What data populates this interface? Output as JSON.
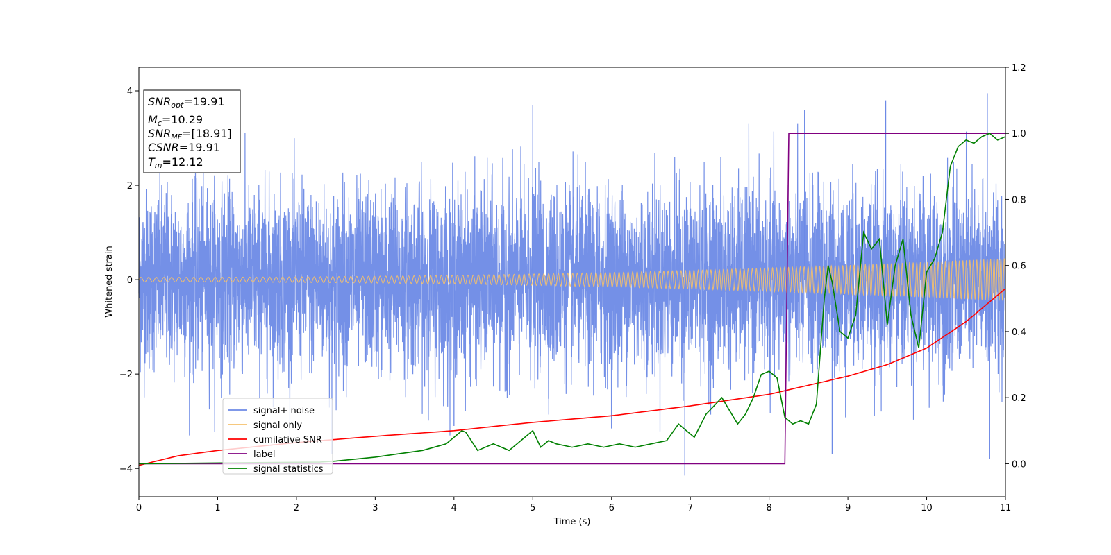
{
  "chart_data": {
    "type": "line",
    "xlabel": "Time (s)",
    "ylabel": "Whitened strain",
    "xlim": [
      0,
      11
    ],
    "ylim": [
      -4.6,
      4.5
    ],
    "y2lim": [
      -0.1,
      1.2
    ],
    "xticks": [
      "0",
      "1",
      "2",
      "3",
      "4",
      "5",
      "6",
      "7",
      "8",
      "9",
      "10",
      "11"
    ],
    "yticks": [
      "-4",
      "-2",
      "0",
      "2",
      "4"
    ],
    "y2ticks": [
      "0.0",
      "0.2",
      "0.4",
      "0.6",
      "0.8",
      "1.0",
      "1.2"
    ],
    "grid": false,
    "legend_position": "lower-left",
    "legend": [
      {
        "label": "signal+ noise",
        "color": "#6d8ae6"
      },
      {
        "label": "signal only",
        "color": "#f4c06c"
      },
      {
        "label": "cumilative SNR",
        "color": "#ff0000"
      },
      {
        "label": "label",
        "color": "#800080"
      },
      {
        "label": "signal statistics",
        "color": "#008000"
      }
    ],
    "info_box": [
      {
        "sym": "SNR",
        "sub": "opt",
        "val": "=19.91"
      },
      {
        "sym": "M",
        "sub": "c",
        "val": "=10.29"
      },
      {
        "sym": "SNR",
        "sub": "MF",
        "val": "=[18.91]"
      },
      {
        "sym": "CSNR",
        "sub": "",
        "val": "=19.91"
      },
      {
        "sym": "T",
        "sub": "m",
        "val": "=12.12"
      }
    ],
    "series": [
      {
        "name": "signal+ noise",
        "axis": "left",
        "kind": "noise",
        "amplitude_sigma": 1.0,
        "x_range": [
          0,
          11
        ],
        "notable_spikes": [
          [
            2.45,
            -3.7
          ],
          [
            5.0,
            3.7
          ],
          [
            6.93,
            -4.15
          ],
          [
            8.45,
            3.6
          ],
          [
            8.8,
            -3.7
          ],
          [
            9.48,
            3.8
          ],
          [
            10.77,
            3.95
          ],
          [
            10.8,
            -3.8
          ],
          [
            4.0,
            -3.1
          ]
        ]
      },
      {
        "name": "signal only",
        "axis": "left",
        "kind": "chirp",
        "x_range": [
          0,
          11
        ],
        "amplitude_start": 0.05,
        "amplitude_end": 0.45
      },
      {
        "name": "cumilative SNR",
        "axis": "right",
        "x": [
          0,
          0.5,
          1,
          2,
          3,
          4,
          5,
          6,
          7,
          8,
          9,
          9.5,
          10,
          10.5,
          11
        ],
        "y": [
          -0.005,
          0.024,
          0.04,
          0.064,
          0.083,
          0.1,
          0.125,
          0.145,
          0.175,
          0.21,
          0.265,
          0.3,
          0.35,
          0.43,
          0.53
        ]
      },
      {
        "name": "label",
        "axis": "right",
        "x": [
          0,
          8.2,
          8.25,
          11
        ],
        "y": [
          0,
          0,
          1,
          1
        ]
      },
      {
        "name": "signal statistics",
        "axis": "right",
        "x": [
          0,
          2.3,
          2.5,
          3.0,
          3.3,
          3.6,
          3.9,
          4.1,
          4.15,
          4.3,
          4.5,
          4.7,
          4.9,
          5.0,
          5.1,
          5.2,
          5.3,
          5.5,
          5.7,
          5.9,
          6.1,
          6.3,
          6.5,
          6.7,
          6.85,
          6.95,
          7.05,
          7.2,
          7.4,
          7.6,
          7.7,
          7.8,
          7.9,
          8.0,
          8.1,
          8.2,
          8.3,
          8.4,
          8.5,
          8.6,
          8.7,
          8.75,
          8.8,
          8.9,
          9.0,
          9.1,
          9.2,
          9.3,
          9.4,
          9.5,
          9.6,
          9.7,
          9.8,
          9.9,
          10.0,
          10.1,
          10.2,
          10.3,
          10.4,
          10.5,
          10.6,
          10.7,
          10.8,
          10.9,
          11.0
        ],
        "y": [
          0.0,
          0.005,
          0.008,
          0.02,
          0.03,
          0.04,
          0.06,
          0.1,
          0.095,
          0.04,
          0.06,
          0.04,
          0.08,
          0.1,
          0.05,
          0.07,
          0.06,
          0.05,
          0.06,
          0.05,
          0.06,
          0.05,
          0.06,
          0.07,
          0.12,
          0.1,
          0.08,
          0.15,
          0.2,
          0.12,
          0.15,
          0.2,
          0.27,
          0.28,
          0.26,
          0.14,
          0.12,
          0.13,
          0.12,
          0.18,
          0.5,
          0.6,
          0.55,
          0.4,
          0.38,
          0.45,
          0.7,
          0.65,
          0.68,
          0.42,
          0.6,
          0.68,
          0.45,
          0.35,
          0.58,
          0.62,
          0.7,
          0.9,
          0.96,
          0.98,
          0.97,
          0.99,
          1.0,
          0.98,
          0.99
        ]
      }
    ]
  }
}
